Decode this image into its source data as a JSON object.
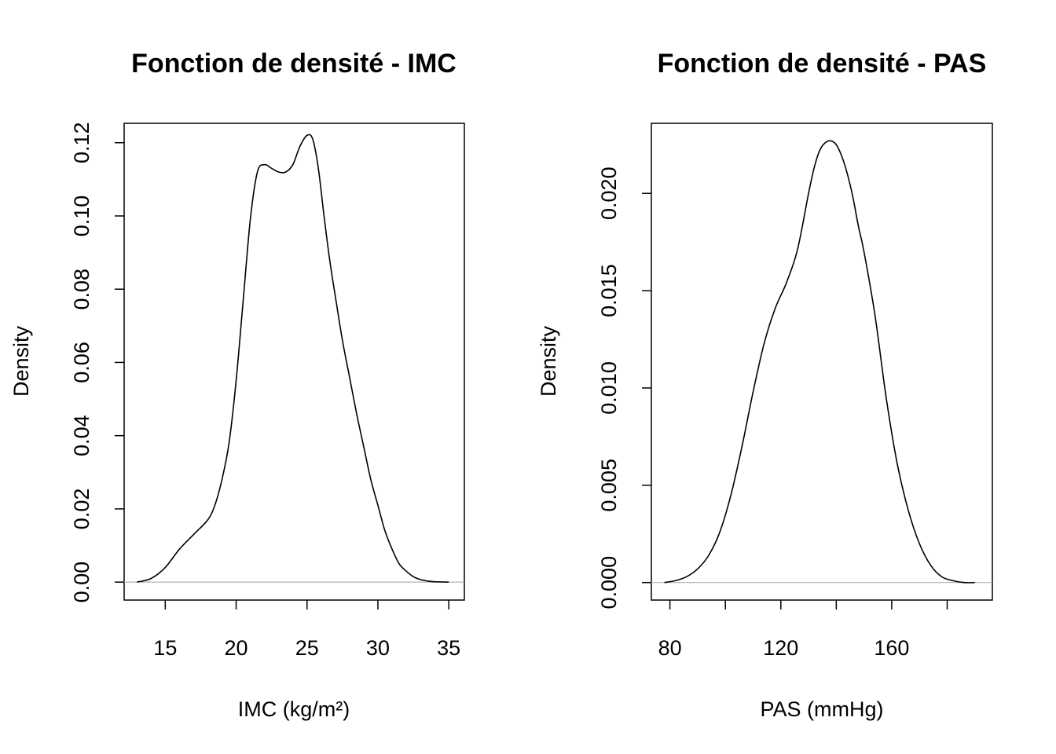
{
  "chart_data": [
    {
      "type": "line",
      "title": "Fonction de densité - IMC",
      "xlabel": "IMC (kg/m²)",
      "ylabel": "Density",
      "xlim": [
        12.1,
        36.1
      ],
      "ylim": [
        -0.0049,
        0.1253
      ],
      "xticks": [
        15,
        20,
        25,
        30,
        35
      ],
      "xtick_labels": [
        "15",
        "20",
        "25",
        "30",
        "35"
      ],
      "yticks": [
        0.0,
        0.02,
        0.04,
        0.06,
        0.08,
        0.1,
        0.12
      ],
      "ytick_labels": [
        "0.00",
        "0.02",
        "0.04",
        "0.06",
        "0.08",
        "0.10",
        "0.12"
      ],
      "baseline": 0,
      "series": [
        {
          "name": "density",
          "x": [
            13.0,
            14.0,
            15.0,
            16.0,
            17.0,
            18.0,
            18.5,
            19.0,
            19.5,
            20.0,
            20.5,
            21.0,
            21.5,
            22.0,
            22.5,
            23.0,
            23.5,
            24.0,
            24.5,
            25.0,
            25.4,
            25.8,
            26.2,
            26.6,
            27.0,
            27.5,
            28.0,
            28.5,
            29.0,
            29.5,
            30.0,
            30.5,
            31.0,
            31.5,
            32.0,
            32.5,
            33.0,
            33.5,
            34.0,
            35.0
          ],
          "y": [
            0.0,
            0.001,
            0.004,
            0.009,
            0.013,
            0.017,
            0.021,
            0.028,
            0.038,
            0.055,
            0.077,
            0.099,
            0.112,
            0.114,
            0.113,
            0.112,
            0.112,
            0.114,
            0.119,
            0.122,
            0.121,
            0.113,
            0.1,
            0.088,
            0.078,
            0.066,
            0.056,
            0.046,
            0.037,
            0.028,
            0.021,
            0.014,
            0.009,
            0.005,
            0.003,
            0.0015,
            0.0007,
            0.0003,
            0.0001,
            0.0
          ]
        }
      ]
    },
    {
      "type": "line",
      "title": "Fonction de densité - PAS",
      "xlabel": "PAS (mmHg)",
      "ylabel": "Density",
      "xlim": [
        73.3,
        196.3
      ],
      "ylim": [
        -0.0009,
        0.0236
      ],
      "xticks": [
        80,
        100,
        120,
        140,
        160,
        180
      ],
      "xtick_labels": [
        "80",
        "",
        "120",
        "",
        "160",
        ""
      ],
      "yticks": [
        0.0,
        0.005,
        0.01,
        0.015,
        0.02
      ],
      "ytick_labels": [
        "0.000",
        "0.005",
        "0.010",
        "0.015",
        "0.020"
      ],
      "baseline": 0,
      "series": [
        {
          "name": "density",
          "x": [
            78,
            82,
            86,
            90,
            94,
            98,
            102,
            106,
            110,
            114,
            118,
            122,
            126,
            130,
            132,
            134,
            136,
            138,
            140,
            142,
            144,
            146,
            148,
            150,
            154,
            158,
            162,
            166,
            170,
            174,
            178,
            182,
            186,
            190
          ],
          "y": [
            0.0,
            0.0001,
            0.0003,
            0.0007,
            0.0014,
            0.0026,
            0.0045,
            0.007,
            0.0098,
            0.0123,
            0.0141,
            0.0154,
            0.0171,
            0.02,
            0.0213,
            0.0222,
            0.0226,
            0.0227,
            0.0225,
            0.0219,
            0.021,
            0.0198,
            0.0183,
            0.017,
            0.0137,
            0.0095,
            0.0061,
            0.0037,
            0.002,
            0.0009,
            0.0003,
            0.0001,
            0.0,
            0.0
          ]
        }
      ]
    }
  ]
}
